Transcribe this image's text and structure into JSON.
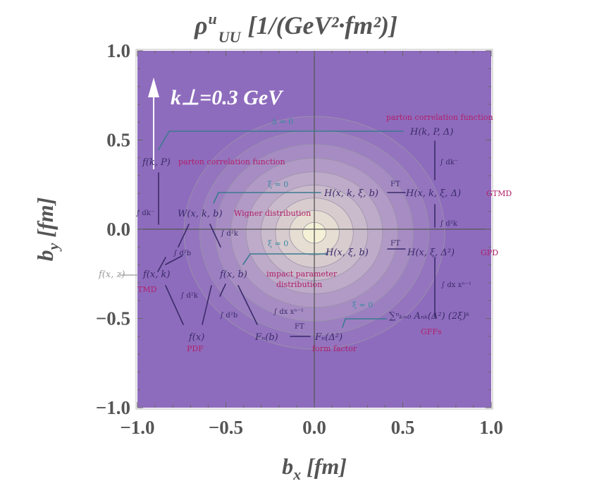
{
  "chart_data": {
    "type": "heatmap",
    "title": "ρ^u_UU [1/(GeV²·fm²)]",
    "title_parts": {
      "rho": "ρ",
      "sup": "u",
      "sub": "UU",
      "units": "[1/(GeV²·fm²)]"
    },
    "xlabel": "b_x [fm]",
    "xlabel_parts": {
      "var": "b",
      "sub": "x",
      "unit": "[fm]"
    },
    "ylabel": "b_y [fm]",
    "ylabel_parts": {
      "var": "b",
      "sub": "y",
      "unit": "[fm]"
    },
    "xlim": [
      -1.0,
      1.0
    ],
    "ylim": [
      -1.0,
      1.0
    ],
    "xticks": [
      "−1.0",
      "−0.5",
      "0.0",
      "0.5",
      "1.0"
    ],
    "yticks": [
      "1.0",
      "0.5",
      "0.0",
      "−0.5",
      "−1.0"
    ],
    "annotation": "k⊥=0.3 GeV",
    "contour_levels": 9,
    "colors": {
      "low": "#8e6cbd",
      "high": "#f4f1d6"
    },
    "overlay": {
      "nodes": {
        "HkPD": "H(k, P, Δ)",
        "fkP": "f(k, P)",
        "Hxkxib": "H(x, k, ξ, b)",
        "HxkxiD": "H(x, k, ξ, Δ)",
        "Wxkb": "W(x, k, b)",
        "fxz": "f(x, z)",
        "fxk": "f(x, k)",
        "fxb": "f(x, b)",
        "Hxxib": "H(x, ξ, b)",
        "HxxiD": "H(x, ξ, Δ²)",
        "sumA": "∑ⁿₖ₌₀ Aₙₖ(Δ²) (2ξ)ᵏ",
        "fx": "f(x)",
        "Fnb": "Fₙ(b)",
        "FnD": "Fₙ(Δ²)"
      },
      "labels": {
        "pcf1": "parton correlation function",
        "pcf2": "parton correlation function",
        "gtmd": "GTMD",
        "wigner": "Wigner distribution",
        "tmd": "TMD",
        "ipd1": "impact parameter",
        "ipd2": "distribution",
        "gpd": "GPD",
        "gffs": "GFFs",
        "pdf": "PDF",
        "ff": "form factor"
      },
      "ops": {
        "dk1": "∫ dk⁻",
        "dk2": "∫ dk⁻",
        "d2k1": "∫ d²k",
        "d2k2": "∫ d²k",
        "d2k3": "∫ d²k",
        "d2b1": "∫ d²b",
        "d2b2": "∫ d²b",
        "dx1": "∫ dx xⁿ⁻¹",
        "dx2": "∫ dx xⁿ⁻¹",
        "ft": "FT"
      },
      "conds": {
        "d0": "Δ = 0",
        "xi0": "ξ = 0"
      }
    }
  }
}
